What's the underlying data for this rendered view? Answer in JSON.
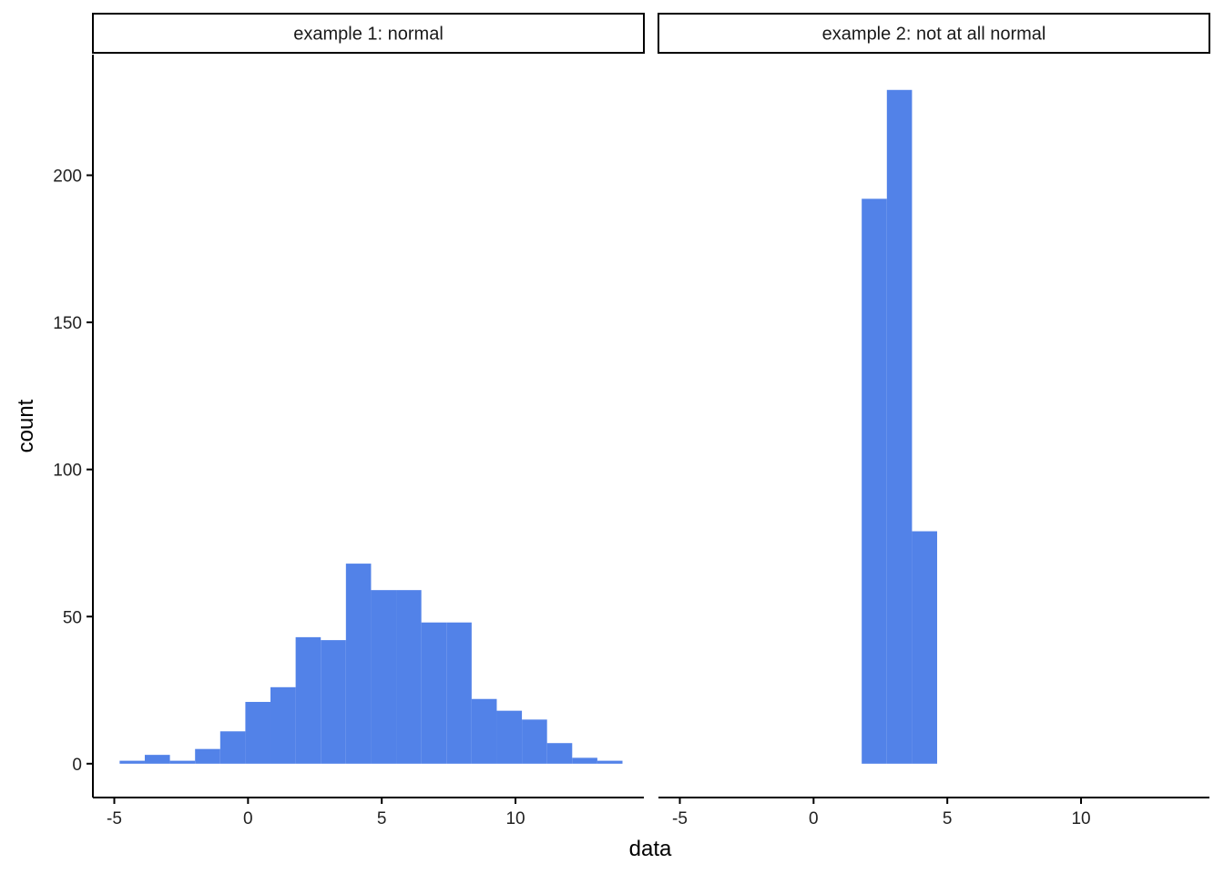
{
  "chart_data": {
    "type": "bar",
    "subtype": "histogram",
    "xlabel": "data",
    "ylabel": "count",
    "xlim": [
      -5.8,
      14.8
    ],
    "ylim": [
      -11.5,
      241
    ],
    "x_ticks": [
      -5,
      0,
      5,
      10
    ],
    "x_tick_labels": [
      "-5",
      "0",
      "5",
      "10"
    ],
    "y_ticks": [
      0,
      50,
      100,
      150,
      200
    ],
    "y_tick_labels": [
      "0",
      "50",
      "100",
      "150",
      "200"
    ],
    "bin_width": 0.94,
    "bar_color": "#5282E8",
    "panels": [
      {
        "title": "example 1: normal",
        "bins": [
          {
            "x0": -4.8,
            "count": 1
          },
          {
            "x0": -3.86,
            "count": 3
          },
          {
            "x0": -2.92,
            "count": 1
          },
          {
            "x0": -1.98,
            "count": 5
          },
          {
            "x0": -1.04,
            "count": 11
          },
          {
            "x0": -0.1,
            "count": 21
          },
          {
            "x0": 0.84,
            "count": 26
          },
          {
            "x0": 1.78,
            "count": 43
          },
          {
            "x0": 2.72,
            "count": 42
          },
          {
            "x0": 3.66,
            "count": 68
          },
          {
            "x0": 4.6,
            "count": 59
          },
          {
            "x0": 5.54,
            "count": 59
          },
          {
            "x0": 6.48,
            "count": 48
          },
          {
            "x0": 7.42,
            "count": 48
          },
          {
            "x0": 8.36,
            "count": 22
          },
          {
            "x0": 9.3,
            "count": 18
          },
          {
            "x0": 10.24,
            "count": 15
          },
          {
            "x0": 11.18,
            "count": 7
          },
          {
            "x0": 12.12,
            "count": 2
          },
          {
            "x0": 13.06,
            "count": 1
          }
        ]
      },
      {
        "title": "example 2: not at all normal",
        "bins": [
          {
            "x0": 1.8,
            "count": 192
          },
          {
            "x0": 2.74,
            "count": 229
          },
          {
            "x0": 3.68,
            "count": 79
          }
        ]
      }
    ]
  }
}
